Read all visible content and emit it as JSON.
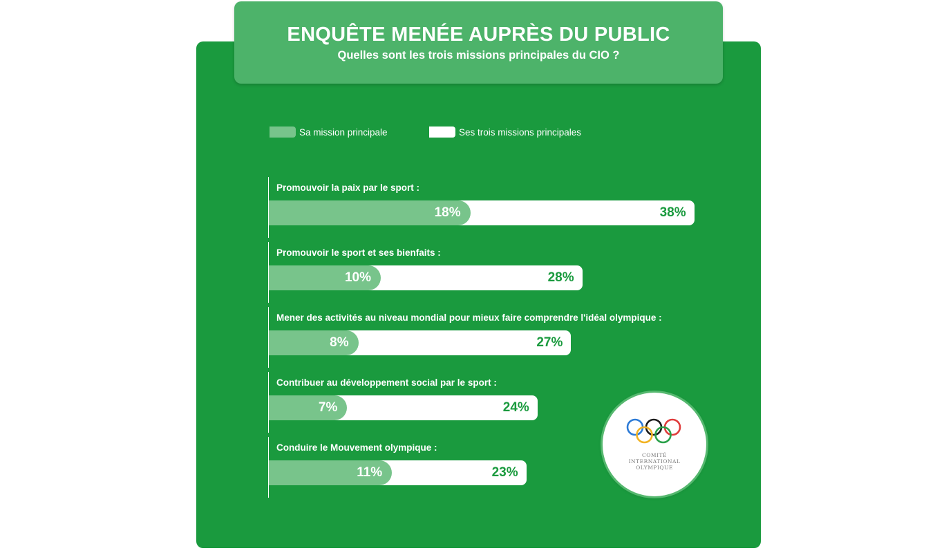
{
  "header": {
    "title": "ENQUÊTE MENÉE AUPRÈS DU PUBLIC",
    "subtitle": "Quelles sont les trois missions principales du CIO ?"
  },
  "legend": {
    "main_label": "Sa mission principale",
    "three_label": "Ses trois missions principales"
  },
  "logo": {
    "text": "COMITÉ\nINTERNATIONAL\nOLYMPIQUE",
    "icon": "olympic-rings-icon"
  },
  "colors": {
    "background": "#1a9a3e",
    "main_bar": "#78c48b",
    "three_bar": "#ffffff",
    "title_box": "#4db36a"
  },
  "chart_data": {
    "type": "bar",
    "orientation": "horizontal",
    "title": "ENQUÊTE MENÉE AUPRÈS DU PUBLIC",
    "subtitle": "Quelles sont les trois missions principales du CIO ?",
    "categories": [
      "Promouvoir la paix par le sport :",
      "Promouvoir le sport et ses bienfaits :",
      "Mener des activités au niveau mondial pour mieux faire comprendre l'idéal olympique :",
      "Contribuer au développement social par le sport :",
      "Conduire le Mouvement olympique :"
    ],
    "series": [
      {
        "name": "Sa mission principale",
        "values": [
          18,
          10,
          8,
          7,
          11
        ],
        "labels": [
          "18%",
          "10%",
          "8%",
          "7%",
          "11%"
        ],
        "color": "#78c48b"
      },
      {
        "name": "Ses trois missions principales",
        "values": [
          38,
          28,
          27,
          24,
          23
        ],
        "labels": [
          "38%",
          "28%",
          "27%",
          "24%",
          "23%"
        ],
        "color": "#ffffff"
      }
    ],
    "unit": "%",
    "legend_position": "top-left",
    "grid": false
  }
}
